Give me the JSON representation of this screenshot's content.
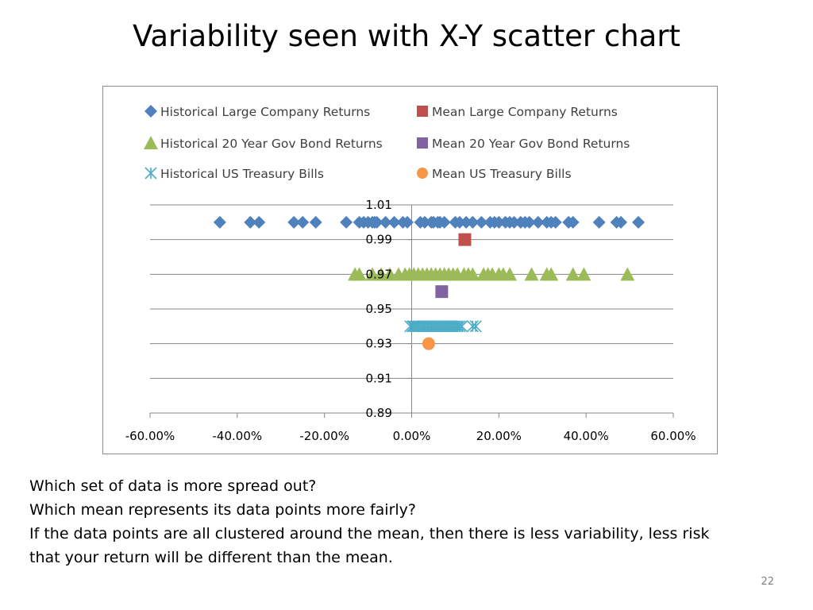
{
  "title": "Variability seen with X-Y scatter chart",
  "body_lines": [
    "Which set of data is more spread out?",
    "Which mean represents its data points more fairly?",
    "If the data points are all clustered around the mean, then there is less variability, less risk",
    "that your return will be different than the mean."
  ],
  "slide_number": "22",
  "chart_data": {
    "type": "scatter",
    "title": "",
    "xlabel": "",
    "ylabel": "",
    "xlim": [
      -0.6,
      0.6
    ],
    "ylim": [
      0.89,
      1.01
    ],
    "x_ticks": [
      {
        "value": -0.6,
        "label": "-60.00%"
      },
      {
        "value": -0.4,
        "label": "-40.00%"
      },
      {
        "value": -0.2,
        "label": "-20.00%"
      },
      {
        "value": 0.0,
        "label": "0.00%"
      },
      {
        "value": 0.2,
        "label": "20.00%"
      },
      {
        "value": 0.4,
        "label": "40.00%"
      },
      {
        "value": 0.6,
        "label": "60.00%"
      }
    ],
    "y_ticks": [
      {
        "value": 1.01,
        "label": "1.01"
      },
      {
        "value": 0.99,
        "label": "0.99"
      },
      {
        "value": 0.97,
        "label": "0.97"
      },
      {
        "value": 0.95,
        "label": "0.95"
      },
      {
        "value": 0.93,
        "label": "0.93"
      },
      {
        "value": 0.91,
        "label": "0.91"
      },
      {
        "value": 0.89,
        "label": "0.89"
      }
    ],
    "grid": "horizontal",
    "legend_position": "top",
    "series": [
      {
        "name": "Historical Large Company Returns",
        "marker": "diamond",
        "color": "#4F81BD",
        "y": 1.0,
        "x": [
          -0.44,
          -0.37,
          -0.35,
          -0.27,
          -0.25,
          -0.22,
          -0.15,
          -0.12,
          -0.11,
          -0.1,
          -0.09,
          -0.085,
          -0.08,
          -0.06,
          -0.04,
          -0.02,
          -0.01,
          0.02,
          0.03,
          0.045,
          0.05,
          0.06,
          0.065,
          0.075,
          0.1,
          0.11,
          0.125,
          0.14,
          0.16,
          0.18,
          0.19,
          0.2,
          0.215,
          0.225,
          0.235,
          0.25,
          0.26,
          0.27,
          0.29,
          0.31,
          0.32,
          0.33,
          0.36,
          0.37,
          0.43,
          0.47,
          0.48,
          0.52
        ]
      },
      {
        "name": "Mean Large Company Returns",
        "marker": "square",
        "color": "#C0504D",
        "points": [
          [
            0.122,
            0.99
          ]
        ]
      },
      {
        "name": "Historical 20 Year Gov Bond Returns",
        "marker": "triangle",
        "color": "#9BBB59",
        "y": 0.97,
        "x": [
          -0.13,
          -0.12,
          -0.09,
          -0.07,
          -0.05,
          -0.03,
          -0.015,
          -0.005,
          0.005,
          0.015,
          0.025,
          0.035,
          0.045,
          0.055,
          0.065,
          0.075,
          0.085,
          0.095,
          0.105,
          0.12,
          0.13,
          0.14,
          0.165,
          0.175,
          0.185,
          0.2,
          0.21,
          0.225,
          0.275,
          0.31,
          0.32,
          0.37,
          0.395,
          0.495
        ]
      },
      {
        "name": "Mean 20 Year Gov Bond Returns",
        "marker": "square",
        "color": "#8064A2",
        "points": [
          [
            0.069,
            0.96
          ]
        ]
      },
      {
        "name": "Historical US Treasury Bills",
        "marker": "asterisk",
        "color": "#4BACC6",
        "y": 0.94,
        "x": [
          -0.003,
          0.002,
          0.005,
          0.01,
          0.015,
          0.02,
          0.025,
          0.03,
          0.035,
          0.04,
          0.045,
          0.05,
          0.055,
          0.06,
          0.065,
          0.07,
          0.075,
          0.08,
          0.085,
          0.09,
          0.095,
          0.1,
          0.105,
          0.11,
          0.115,
          0.14,
          0.147
        ]
      },
      {
        "name": "Mean US Treasury Bills",
        "marker": "circle",
        "color": "#F79646",
        "points": [
          [
            0.039,
            0.93
          ]
        ]
      }
    ]
  }
}
